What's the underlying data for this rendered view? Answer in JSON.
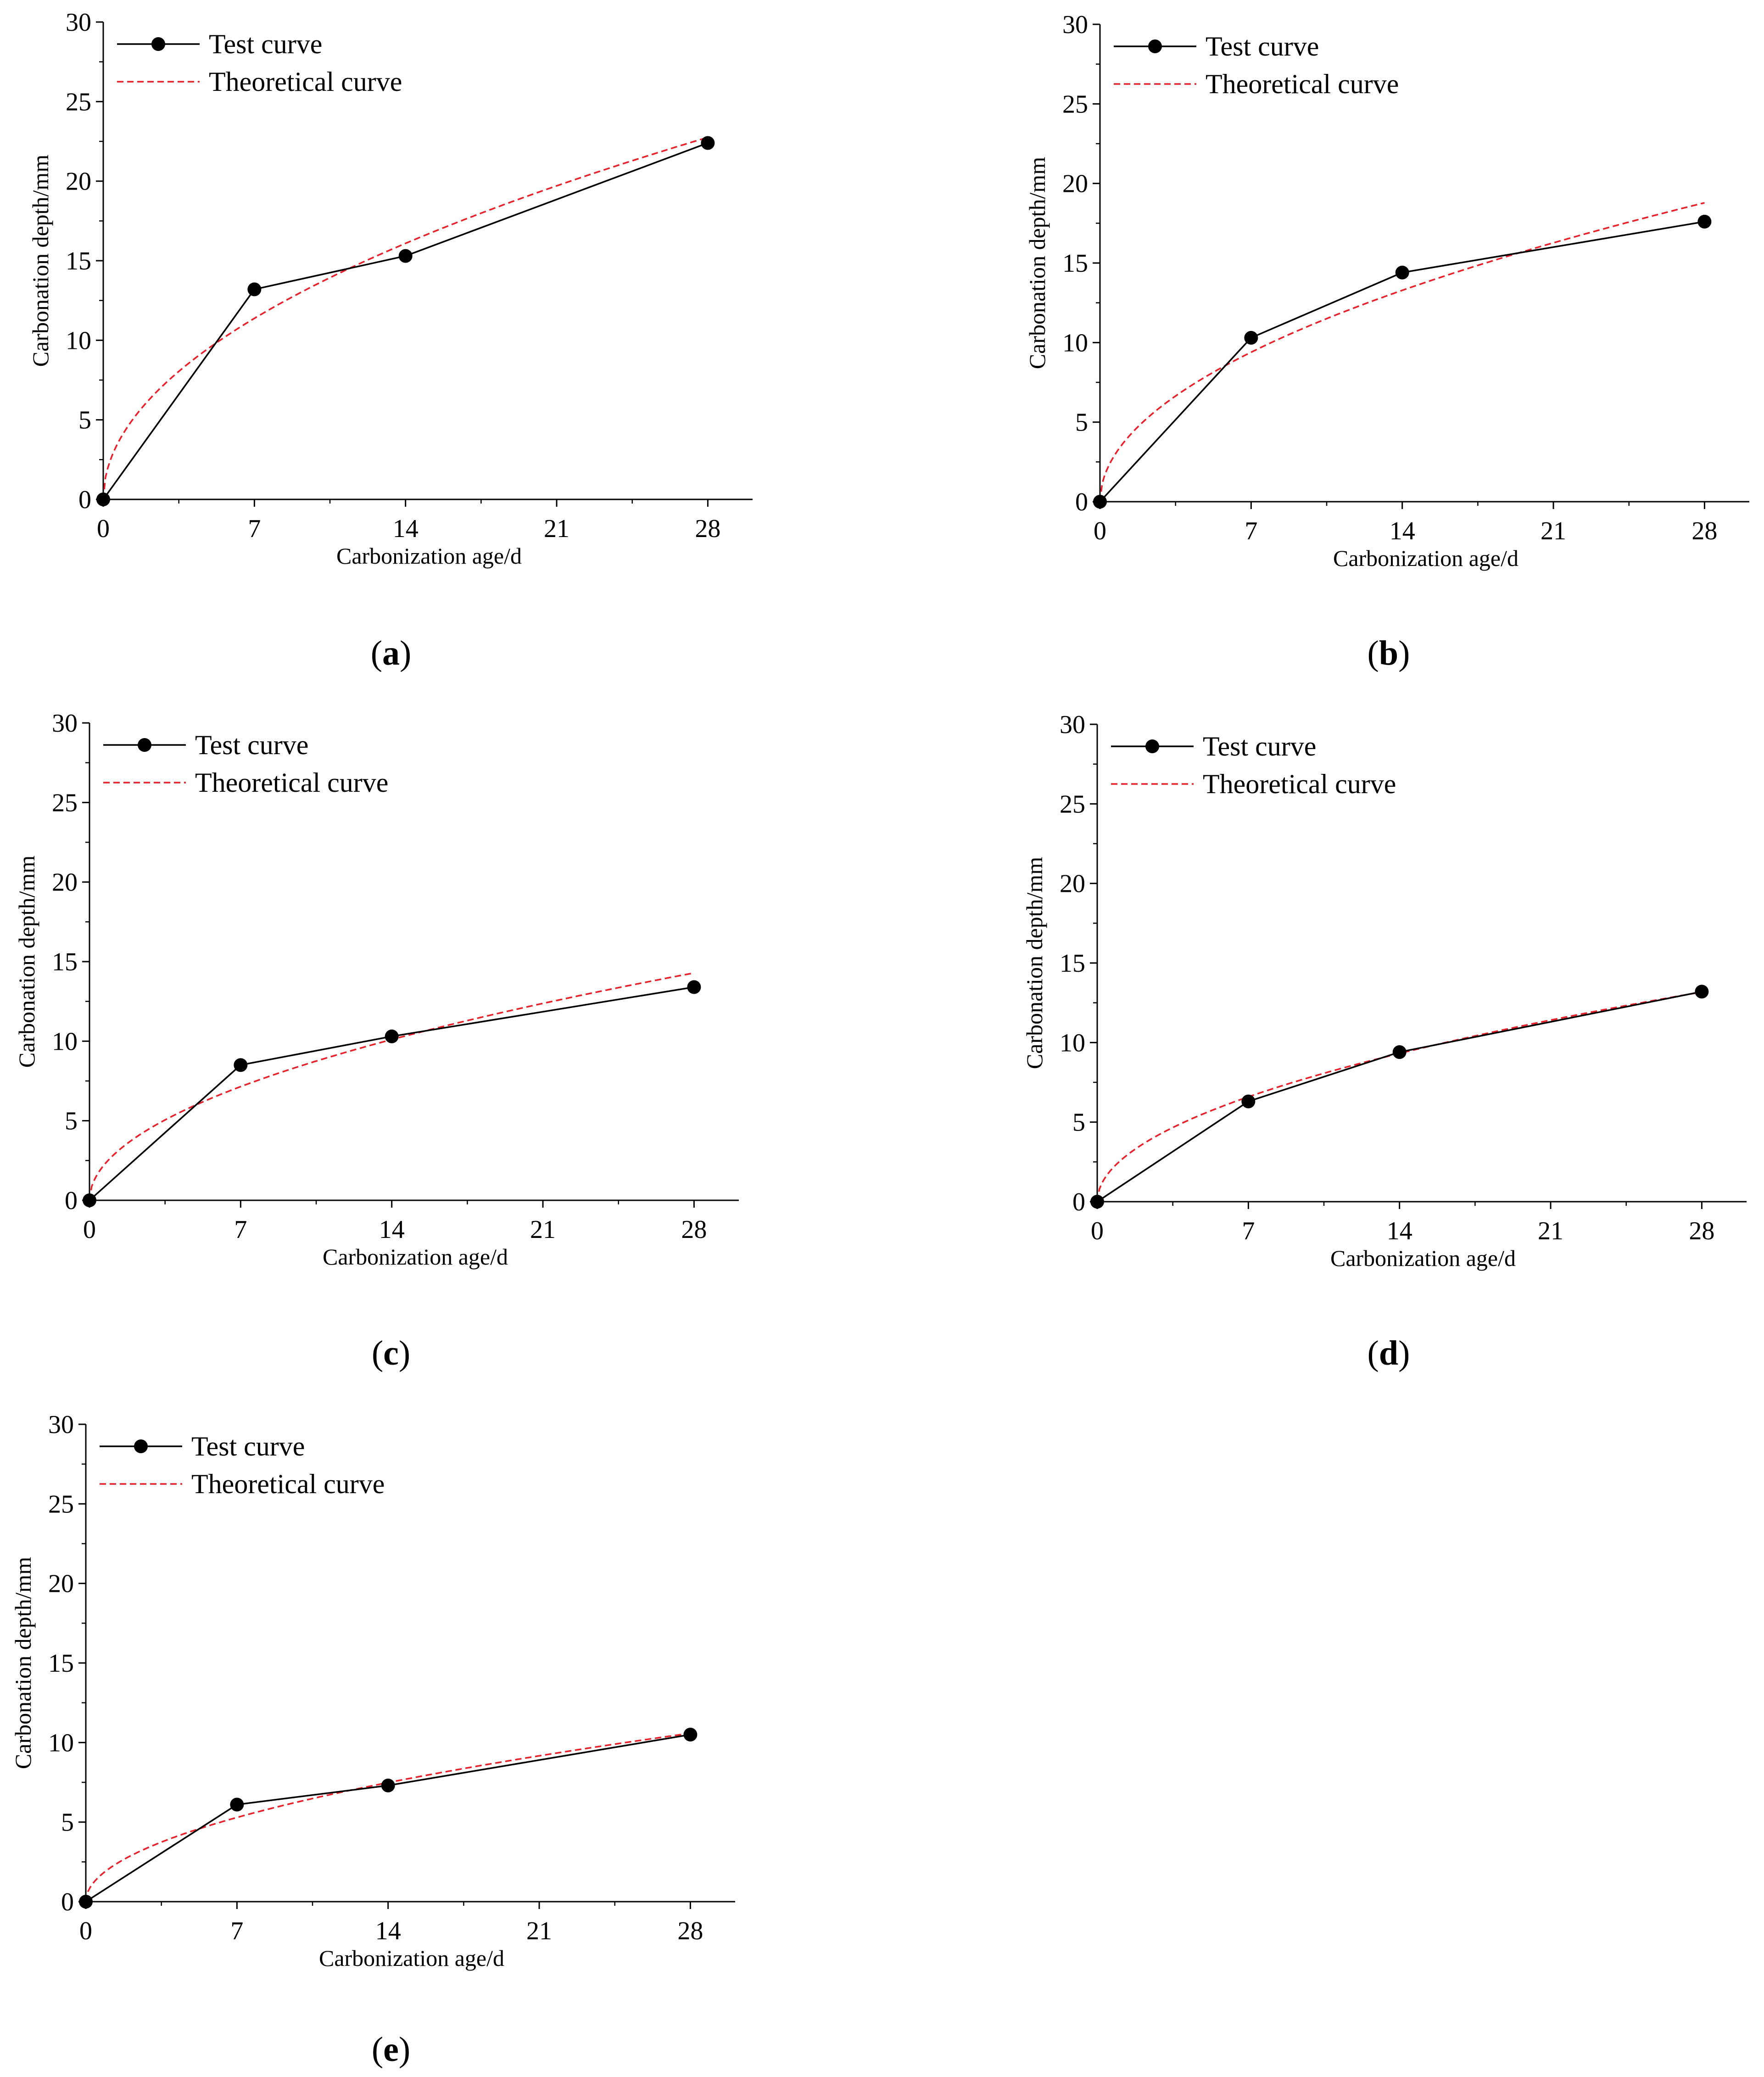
{
  "figure": {
    "chart_data": [
      {
        "type": "line",
        "caption": "a",
        "xlabel": "Carbonization age/d",
        "ylabel": "Carbonation depth/mm",
        "xlim": [
          0,
          30
        ],
        "ylim": [
          0,
          30
        ],
        "xticks": [
          "0",
          "7",
          "14",
          "21",
          "28"
        ],
        "yticks": [
          "0",
          "5",
          "10",
          "15",
          "20",
          "25",
          "30"
        ],
        "legend": [
          "Test curve",
          "Theoretical curve"
        ],
        "series": [
          {
            "name": "Test curve",
            "x": [
              0,
              7,
              14,
              28
            ],
            "y": [
              0,
              13.2,
              15.3,
              22.4
            ]
          },
          {
            "name": "Theoretical curve",
            "model": "sqrt",
            "coefficient": 4.3
          }
        ]
      },
      {
        "type": "line",
        "caption": "b",
        "xlabel": "Carbonization age/d",
        "ylabel": "Carbonation depth/mm",
        "xlim": [
          0,
          30
        ],
        "ylim": [
          0,
          30
        ],
        "xticks": [
          "0",
          "7",
          "14",
          "21",
          "28"
        ],
        "yticks": [
          "0",
          "5",
          "10",
          "15",
          "20",
          "25",
          "30"
        ],
        "legend": [
          "Test curve",
          "Theoretical curve"
        ],
        "series": [
          {
            "name": "Test curve",
            "x": [
              0,
              7,
              14,
              28
            ],
            "y": [
              0,
              10.3,
              14.4,
              17.6
            ]
          },
          {
            "name": "Theoretical curve",
            "model": "sqrt",
            "coefficient": 3.55
          }
        ]
      },
      {
        "type": "line",
        "caption": "c",
        "xlabel": "Carbonization age/d",
        "ylabel": "Carbonation depth/mm",
        "xlim": [
          0,
          30
        ],
        "ylim": [
          0,
          30
        ],
        "xticks": [
          "0",
          "7",
          "14",
          "21",
          "28"
        ],
        "yticks": [
          "0",
          "5",
          "10",
          "15",
          "20",
          "25",
          "30"
        ],
        "legend": [
          "Test curve",
          "Theoretical curve"
        ],
        "series": [
          {
            "name": "Test curve",
            "x": [
              0,
              7,
              14,
              28
            ],
            "y": [
              0,
              8.5,
              10.3,
              13.4
            ]
          },
          {
            "name": "Theoretical curve",
            "model": "sqrt",
            "coefficient": 2.7
          }
        ]
      },
      {
        "type": "line",
        "caption": "d",
        "xlabel": "Carbonization age/d",
        "ylabel": "Carbonation depth/mm",
        "xlim": [
          0,
          30
        ],
        "ylim": [
          0,
          30
        ],
        "xticks": [
          "0",
          "7",
          "14",
          "21",
          "28"
        ],
        "yticks": [
          "0",
          "5",
          "10",
          "15",
          "20",
          "25",
          "30"
        ],
        "legend": [
          "Test curve",
          "Theoretical curve"
        ],
        "series": [
          {
            "name": "Test curve",
            "x": [
              0,
              7,
              14,
              28
            ],
            "y": [
              0,
              6.3,
              9.4,
              13.2
            ]
          },
          {
            "name": "Theoretical curve",
            "model": "sqrt",
            "coefficient": 2.49
          }
        ]
      },
      {
        "type": "line",
        "caption": "e",
        "xlabel": "Carbonization age/d",
        "ylabel": "Carbonation depth/mm",
        "xlim": [
          0,
          30
        ],
        "ylim": [
          0,
          30
        ],
        "xticks": [
          "0",
          "7",
          "14",
          "21",
          "28"
        ],
        "yticks": [
          "0",
          "5",
          "10",
          "15",
          "20",
          "25",
          "30"
        ],
        "legend": [
          "Test curve",
          "Theoretical curve"
        ],
        "series": [
          {
            "name": "Test curve",
            "x": [
              0,
              7,
              14,
              28
            ],
            "y": [
              0,
              6.1,
              7.3,
              10.5
            ]
          },
          {
            "name": "Theoretical curve",
            "model": "sqrt",
            "coefficient": 2.0
          }
        ]
      }
    ],
    "colors": {
      "test": "#000000",
      "theory": "#e8202a",
      "axis": "#000000"
    }
  }
}
